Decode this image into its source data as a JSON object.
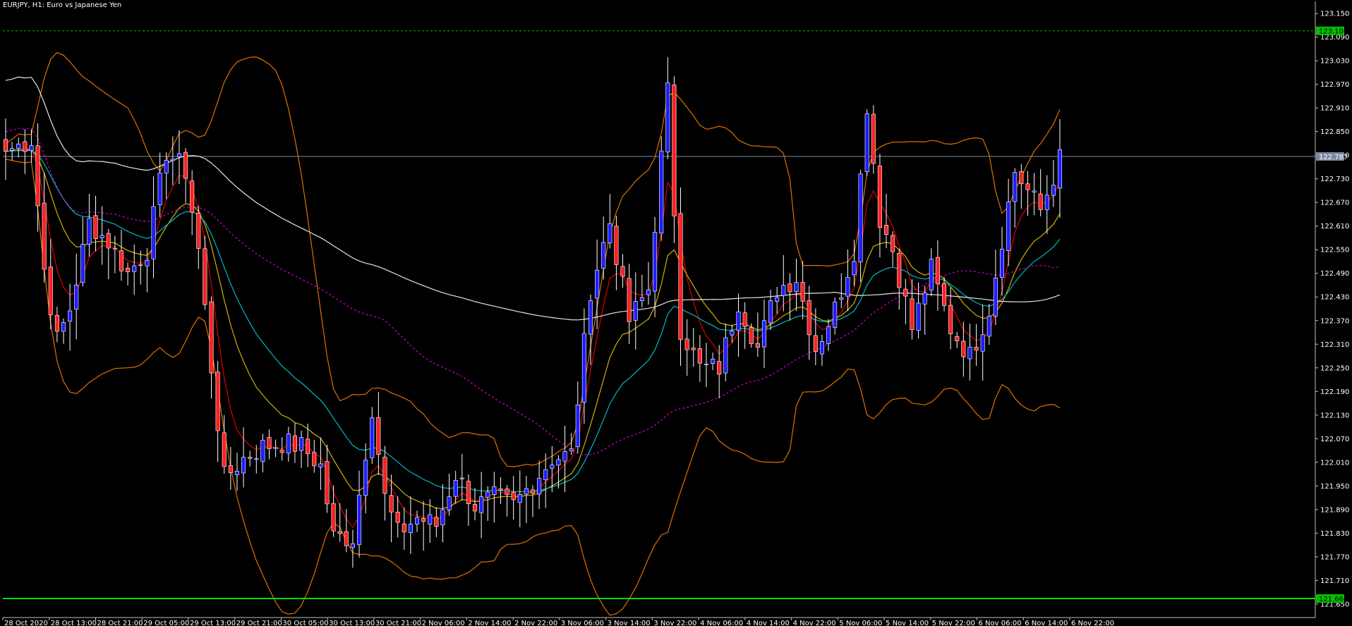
{
  "window": {
    "title": "EURJPY, H1:  Euro vs Japanese Yen"
  },
  "colors": {
    "background": "#000000",
    "axis": "#c0c0c0",
    "bull_candle_body": "#1e1eff",
    "bear_candle_body": "#ff2020",
    "wick": "#ffffff",
    "ma_red": "#e00000",
    "ma_yellow": "#d4b000",
    "ma_cyan": "#00b8c8",
    "ma_white": "#e6e6e6",
    "ma_magenta_dotted": "#d000d0",
    "bollinger": "#e07000",
    "support_line": "#00e000",
    "resistance_dotted": "#00c000",
    "current_price_line": "#7a8aa0"
  },
  "chart_data": {
    "type": "candlestick",
    "symbol": "EURJPY",
    "timeframe": "H1",
    "y_ticks": [
      "123.150",
      "123.090",
      "123.030",
      "122.970",
      "122.910",
      "122.850",
      "122.790",
      "122.730",
      "122.670",
      "122.610",
      "122.550",
      "122.490",
      "122.430",
      "122.370",
      "122.310",
      "122.250",
      "122.190",
      "122.130",
      "122.070",
      "122.010",
      "121.950",
      "121.890",
      "121.830",
      "121.770",
      "121.710",
      "121.650"
    ],
    "ylim": [
      121.63,
      123.17
    ],
    "x_ticks": [
      "28 Oct 2020",
      "28 Oct 13:00",
      "28 Oct 21:00",
      "29 Oct 05:00",
      "29 Oct 13:00",
      "29 Oct 21:00",
      "30 Oct 05:00",
      "30 Oct 13:00",
      "30 Oct 21:00",
      "2 Nov 06:00",
      "2 Nov 14:00",
      "2 Nov 22:00",
      "3 Nov 06:00",
      "3 Nov 14:00",
      "3 Nov 22:00",
      "4 Nov 06:00",
      "4 Nov 14:00",
      "4 Nov 22:00",
      "5 Nov 06:00",
      "5 Nov 14:00",
      "5 Nov 22:00",
      "6 Nov 06:00",
      "6 Nov 14:00",
      "6 Nov 22:00"
    ],
    "price_labels": {
      "resistance": "123.106",
      "current": "122.787",
      "support": "121.664"
    },
    "levels": {
      "resistance": 123.106,
      "current": 122.787,
      "support": 121.664
    },
    "anchors_close": [
      [
        0,
        122.8
      ],
      [
        4,
        122.83
      ],
      [
        6,
        122.5
      ],
      [
        8,
        122.32
      ],
      [
        10,
        122.4
      ],
      [
        13,
        122.62
      ],
      [
        16,
        122.57
      ],
      [
        19,
        122.49
      ],
      [
        22,
        122.55
      ],
      [
        25,
        122.8
      ],
      [
        28,
        122.75
      ],
      [
        30,
        122.55
      ],
      [
        32,
        122.25
      ],
      [
        34,
        121.97
      ],
      [
        37,
        122.02
      ],
      [
        40,
        122.05
      ],
      [
        43,
        122.06
      ],
      [
        46,
        122.05
      ],
      [
        49,
        122.0
      ],
      [
        51,
        121.82
      ],
      [
        54,
        121.82
      ],
      [
        57,
        122.15
      ],
      [
        59,
        121.92
      ],
      [
        61,
        121.83
      ],
      [
        64,
        121.87
      ],
      [
        67,
        121.85
      ],
      [
        70,
        121.98
      ],
      [
        73,
        121.9
      ],
      [
        76,
        121.92
      ],
      [
        79,
        121.9
      ],
      [
        82,
        121.96
      ],
      [
        85,
        122.02
      ],
      [
        88,
        122.03
      ],
      [
        91,
        122.45
      ],
      [
        94,
        122.62
      ],
      [
        97,
        122.37
      ],
      [
        100,
        122.45
      ],
      [
        103,
        122.95
      ],
      [
        105,
        122.35
      ],
      [
        108,
        122.25
      ],
      [
        111,
        122.25
      ],
      [
        114,
        122.42
      ],
      [
        117,
        122.3
      ],
      [
        120,
        122.45
      ],
      [
        123,
        122.48
      ],
      [
        126,
        122.3
      ],
      [
        129,
        122.4
      ],
      [
        132,
        122.55
      ],
      [
        134,
        122.92
      ],
      [
        136,
        122.63
      ],
      [
        138,
        122.55
      ],
      [
        141,
        122.35
      ],
      [
        144,
        122.5
      ],
      [
        147,
        122.35
      ],
      [
        150,
        122.28
      ],
      [
        153,
        122.4
      ],
      [
        155,
        122.58
      ],
      [
        157,
        122.75
      ],
      [
        159,
        122.7
      ],
      [
        161,
        122.65
      ],
      [
        164,
        122.78
      ]
    ],
    "candle_count": 165
  }
}
